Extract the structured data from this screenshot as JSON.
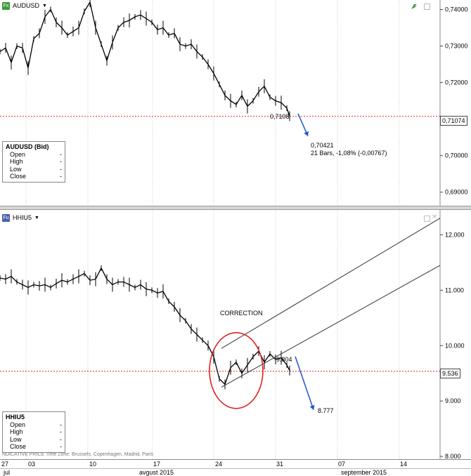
{
  "top_panel": {
    "symbol": "AUDUSD",
    "icon_text": "Fx",
    "dropdown_glyph": "▼",
    "ohlc": {
      "title": "AUDUSD (Bid)",
      "rows": [
        {
          "label": "Open",
          "value": "-"
        },
        {
          "label": "High",
          "value": "-"
        },
        {
          "label": "Low",
          "value": "-"
        },
        {
          "label": "Close",
          "value": "-"
        }
      ]
    },
    "price_tag": "0,71074",
    "marker_label": "0,7108",
    "target_label": "0,70421",
    "stats_label": "21 Bars, -1,08% (-0,00767)"
  },
  "bottom_panel": {
    "symbol": "HHIU5",
    "icon_text": "Fu",
    "dropdown_glyph": "▼",
    "ohlc": {
      "title": "HHIU5",
      "rows": [
        {
          "label": "Open",
          "value": "-"
        },
        {
          "label": "High",
          "value": "-"
        },
        {
          "label": "Low",
          "value": "-"
        },
        {
          "label": "Close",
          "value": "-"
        }
      ]
    },
    "price_tag": "9.536",
    "correction_label": "CORRECTION",
    "marker_label": "9.804",
    "target_label": "8.777",
    "info_text": "NDICATIVE PRICE   Time Zone: Brussels, Copenhagen, Madrid, Paris"
  },
  "time_axis": {
    "days": [
      "27",
      "03",
      "10",
      "17",
      "24",
      "31",
      "07",
      "14"
    ],
    "months": [
      "jul",
      "avgust 2015",
      "september 2015"
    ]
  },
  "colors": {
    "price_line": "#000000",
    "current_level": "#d9282f",
    "arrow": "#1e55d2",
    "circle": "#e02020",
    "grid": "#c8c8c8",
    "fx_icon": "#3d9a3d",
    "fu_icon": "#4a5fb0"
  },
  "chart_data": [
    {
      "type": "line",
      "title": "AUDUSD",
      "x": [
        "27",
        "03",
        "10",
        "17",
        "24",
        "31"
      ],
      "y_ticks": [
        "0,74000",
        "0,73000",
        "0,72000",
        "0,71000",
        "0,70000",
        "0,69000"
      ],
      "ylim": [
        0.6863,
        0.7426
      ],
      "series": [
        {
          "name": "AUDUSD",
          "x": [
            0,
            8,
            16,
            24,
            32,
            40,
            48,
            56,
            64,
            72,
            80,
            88,
            96,
            104,
            112,
            120,
            128,
            136,
            144,
            152,
            160,
            168,
            176,
            184,
            192,
            200,
            208,
            216,
            224,
            232,
            240,
            248,
            256,
            264,
            272,
            280,
            288,
            296,
            304,
            312,
            320,
            328,
            336,
            344,
            352,
            360,
            368,
            376,
            384,
            392,
            400,
            408,
            412
          ],
          "values": [
            0.7285,
            0.7295,
            0.7255,
            0.73,
            0.7295,
            0.724,
            0.732,
            0.7335,
            0.738,
            0.74,
            0.7365,
            0.735,
            0.733,
            0.734,
            0.735,
            0.7395,
            0.742,
            0.735,
            0.7305,
            0.726,
            0.731,
            0.735,
            0.7365,
            0.737,
            0.738,
            0.7385,
            0.7375,
            0.7365,
            0.7345,
            0.735,
            0.733,
            0.7335,
            0.7305,
            0.73,
            0.7305,
            0.7285,
            0.727,
            0.725,
            0.7225,
            0.7195,
            0.7165,
            0.715,
            0.714,
            0.7165,
            0.7135,
            0.715,
            0.7175,
            0.719,
            0.716,
            0.715,
            0.7145,
            0.713,
            0.7108
          ]
        }
      ],
      "current_level": 0.71074,
      "projection": {
        "from": 0.7115,
        "to": 0.70421,
        "bars": 21,
        "change_pct": -1.08,
        "change": -0.00767
      }
    },
    {
      "type": "line",
      "title": "HHIU5",
      "x": [
        "27",
        "03",
        "10",
        "17",
        "24",
        "31",
        "07",
        "14"
      ],
      "y_ticks": [
        "12.000",
        "11.000",
        "10.000",
        "9.000",
        "8.000"
      ],
      "ylim": [
        7.95,
        12.45
      ],
      "series": [
        {
          "name": "HHIU5",
          "x": [
            0,
            8,
            16,
            24,
            32,
            40,
            48,
            56,
            64,
            72,
            80,
            88,
            96,
            104,
            112,
            120,
            128,
            136,
            144,
            152,
            160,
            168,
            176,
            184,
            192,
            200,
            208,
            216,
            224,
            232,
            240,
            248,
            256,
            264,
            272,
            280,
            288,
            296,
            304,
            312,
            320,
            328,
            336,
            344,
            352,
            360,
            368,
            376,
            384,
            392,
            400,
            408,
            412
          ],
          "values": [
            11.22,
            11.2,
            11.25,
            11.15,
            11.1,
            11.05,
            11.1,
            11.08,
            11.1,
            11.05,
            11.12,
            11.18,
            11.15,
            11.2,
            11.25,
            11.3,
            11.18,
            11.2,
            11.4,
            11.2,
            11.1,
            11.15,
            11.15,
            11.1,
            11.05,
            11.1,
            11.02,
            11.0,
            10.95,
            10.98,
            10.8,
            10.7,
            10.55,
            10.45,
            10.3,
            10.2,
            10.1,
            10.0,
            9.8,
            9.4,
            9.3,
            9.6,
            9.7,
            9.5,
            9.65,
            9.8,
            9.9,
            9.7,
            9.85,
            9.75,
            9.78,
            9.65,
            9.55
          ]
        }
      ],
      "current_level": 9.536,
      "channel": {
        "lines": [
          [
            9.25,
            11.45
          ],
          [
            9.95,
            12.3
          ]
        ]
      },
      "projection": {
        "from": 9.804,
        "to": 8.777
      }
    }
  ]
}
